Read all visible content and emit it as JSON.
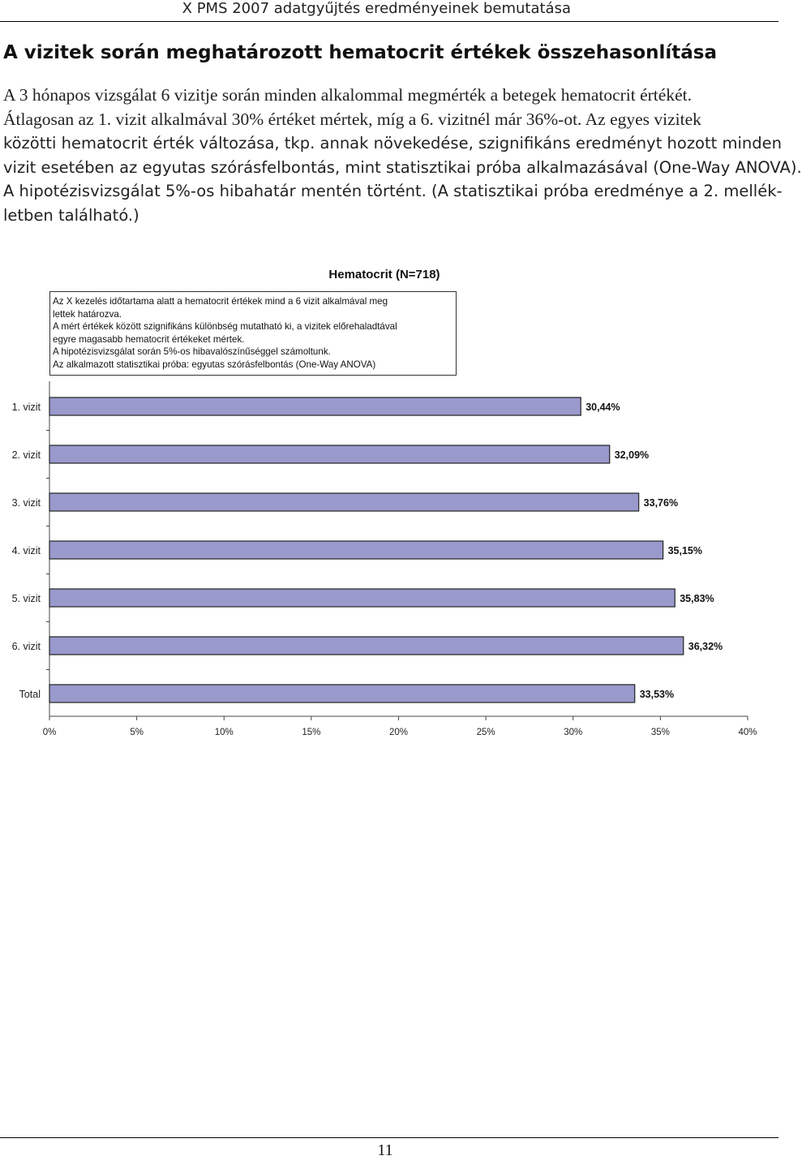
{
  "header": {
    "running_title": "X PMS 2007 adatgyűjtés eredményeinek bemutatása"
  },
  "section": {
    "title": "A vizitek során meghatározott hematocrit értékek összehasonlítása",
    "intro_lines": [
      "A 3 hónapos vizsgálat 6 vizitje során minden alkalommal megmérték a betegek hematocrit értékét.",
      "Átlagosan az 1. vizit alkalmával 30% értéket mértek, míg a 6. vizitnél már 36%-ot. Az egyes vizitek",
      "közötti hematocrit érték változása, tkp. annak növekedése, szignifikáns eredményt hozott minden",
      "vizit esetében az egyutas szórásfelbontás, mint statisztikai próba alkalmazásával (One-Way ANOVA).",
      "A hipotézisvizsgálat 5%-os hibahatár mentén történt. (A statisztikai próba eredménye a 2. mellék-",
      "letben található.)"
    ]
  },
  "note": {
    "lines": [
      "Az X kezelés időtartama alatt a hematocrit értékek mind a 6 vizit alkalmával meg",
      "lettek határozva.",
      "A mért értékek között szignifikáns különbség mutatható ki, a vizitek előrehaladtával",
      "egyre magasabb hematocrit értékeket mértek.",
      "A hipotézisvizsgálat során 5%-os hibavalószínűséggel számoltunk.",
      "Az alkalmazott statisztikai próba: egyutas szórásfelbontás (One-Way ANOVA)"
    ]
  },
  "chart_data": {
    "type": "bar",
    "orientation": "horizontal",
    "title": "Hematocrit (N=718)",
    "categories": [
      "1. vizit",
      "2. vizit",
      "3. vizit",
      "4. vizit",
      "5. vizit",
      "6. vizit",
      "Total"
    ],
    "values": [
      30.44,
      32.09,
      33.76,
      35.15,
      35.83,
      36.32,
      33.53
    ],
    "value_labels": [
      "30,44%",
      "32,09%",
      "33,76%",
      "35,15%",
      "35,83%",
      "36,32%",
      "33,53%"
    ],
    "x_ticks": [
      "0%",
      "5%",
      "10%",
      "15%",
      "20%",
      "25%",
      "30%",
      "35%",
      "40%"
    ],
    "xlim": [
      0,
      40
    ],
    "grid": false,
    "legend": "none",
    "bar_color": "#9999cc"
  },
  "footer": {
    "page_number": "11"
  }
}
